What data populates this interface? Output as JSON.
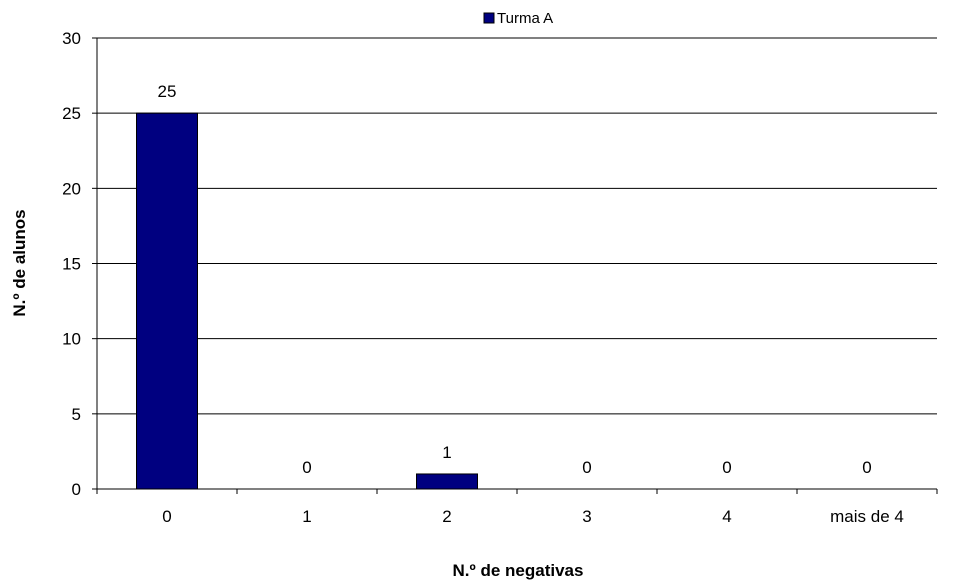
{
  "chart_data": {
    "type": "bar",
    "categories": [
      "0",
      "1",
      "2",
      "3",
      "4",
      "mais de 4"
    ],
    "series": [
      {
        "name": "Turma A",
        "values": [
          25,
          0,
          1,
          0,
          0,
          0
        ],
        "color": "#000080"
      }
    ],
    "xlabel": "N.º de negativas",
    "ylabel": "N.º de alunos",
    "ylim": [
      0,
      30
    ],
    "yticks": [
      0,
      5,
      10,
      15,
      20,
      25,
      30
    ],
    "grid": true,
    "legend": "top-center",
    "data_labels": true
  }
}
